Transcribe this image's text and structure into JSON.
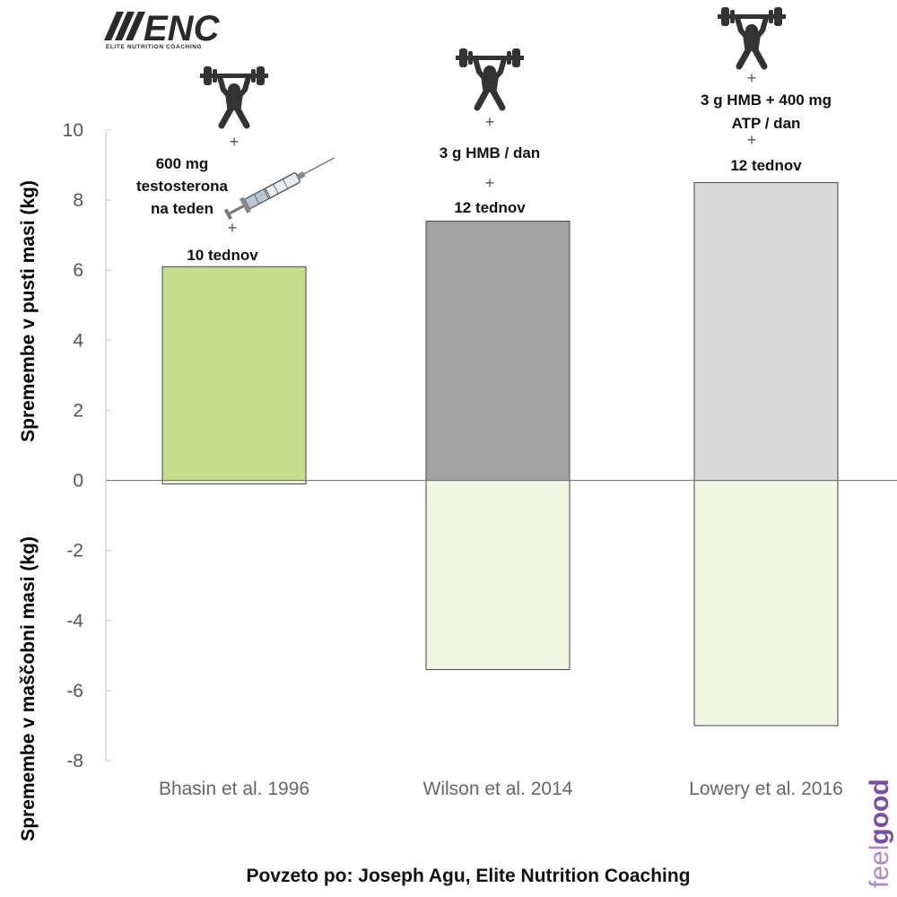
{
  "logo": {
    "name": "ENC",
    "tagline": "ELITE NUTRITION COACHING"
  },
  "watermark": {
    "part1": "feel",
    "part2": "good"
  },
  "source_note": "Povzeto po: Joseph Agu, Elite Nutrition Coaching",
  "annotations": {
    "bhasin": {
      "dose_lines": [
        "600 mg",
        "testosterona",
        "na teden"
      ],
      "duration": "10 tednov"
    },
    "wilson": {
      "dose_lines": [
        "3 g HMB / dan"
      ],
      "duration": "12 tednov"
    },
    "lowery": {
      "dose_lines": [
        "3 g HMB  + 400 mg",
        "ATP / dan"
      ],
      "duration": "12 tednov"
    },
    "plus_sign": "+"
  },
  "colors": {
    "bhasin_lean": "#c5dc8c",
    "wilson_lean": "#a3a3a3",
    "lowery_lean": "#d9d9d9",
    "fat_loss": "#f1f6e4",
    "bar_stroke": "#444444",
    "zero_line": "#777777",
    "axis_line": "#cfcfcf"
  },
  "chart_data": {
    "type": "bar",
    "categories": [
      "Bhasin et al. 1996",
      "Wilson et al. 2014",
      "Lowery et al. 2016"
    ],
    "series": [
      {
        "values": [
          6.1,
          7.4,
          8.5
        ]
      },
      {
        "values": [
          -0.1,
          -5.4,
          -7.0
        ]
      }
    ],
    "ylabel_top": "Spremembe v pusti masi (kg)",
    "ylabel_bottom": "Spremembe v maščobni masi (kg)",
    "ylim": [
      -8,
      10
    ],
    "yticks": [
      10,
      8,
      6,
      4,
      2,
      0,
      -2,
      -4,
      -6,
      -8
    ],
    "grid": false,
    "legend": "none"
  }
}
